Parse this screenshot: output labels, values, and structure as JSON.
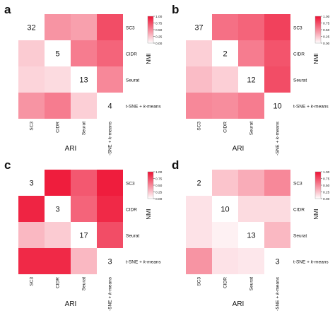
{
  "chart_data": [
    {
      "panel": "a",
      "type": "heatmap",
      "rows": [
        "SC3",
        "CIDR",
        "Seurat",
        "t-SNE + k-means"
      ],
      "columns": [
        "SC3",
        "CIDR",
        "Seurat",
        "t-SNE + k-means"
      ],
      "diagonal_labels": [
        "32",
        "5",
        "13",
        "4"
      ],
      "values": [
        [
          null,
          0.45,
          0.4,
          0.75
        ],
        [
          0.22,
          null,
          0.55,
          0.65
        ],
        [
          0.18,
          0.15,
          null,
          0.5
        ],
        [
          0.45,
          0.55,
          0.2,
          null
        ]
      ],
      "xlabel": "ARI",
      "colorbar": {
        "title": "NMI",
        "ticks": [
          "1.00",
          "0.75",
          "0.50",
          "0.25",
          "0.00"
        ],
        "range": [
          0,
          1
        ],
        "colors": [
          "#ffffff",
          "#ee1133"
        ]
      }
    },
    {
      "panel": "b",
      "type": "heatmap",
      "rows": [
        "SC3",
        "CIDR",
        "Seurat",
        "t-SNE + k-means"
      ],
      "columns": [
        "SC3",
        "CIDR",
        "Seurat",
        "t-SNE + k-means"
      ],
      "diagonal_labels": [
        "37",
        "2",
        "12",
        "10"
      ],
      "values": [
        [
          null,
          0.6,
          0.65,
          0.8
        ],
        [
          0.2,
          null,
          0.55,
          0.72
        ],
        [
          0.28,
          0.2,
          null,
          0.75
        ],
        [
          0.5,
          0.48,
          0.55,
          null
        ]
      ],
      "xlabel": "ARI",
      "colorbar": {
        "title": "NMI",
        "ticks": [
          "1.00",
          "0.75",
          "0.50",
          "0.25",
          "0.00"
        ],
        "range": [
          0,
          1
        ],
        "colors": [
          "#ffffff",
          "#ee1133"
        ]
      }
    },
    {
      "panel": "c",
      "type": "heatmap",
      "rows": [
        "SC3",
        "CIDR",
        "Seurat",
        "t-SNE + k-means"
      ],
      "columns": [
        "SC3",
        "CIDR",
        "Seurat",
        "t-SNE + k-means"
      ],
      "diagonal_labels": [
        "3",
        "3",
        "17",
        "3"
      ],
      "values": [
        [
          null,
          0.95,
          0.7,
          0.95
        ],
        [
          0.92,
          null,
          0.65,
          0.9
        ],
        [
          0.3,
          0.22,
          null,
          0.75
        ],
        [
          0.9,
          0.9,
          0.3,
          null
        ]
      ],
      "xlabel": "ARI",
      "colorbar": {
        "title": "NMI",
        "ticks": [
          "1.00",
          "0.75",
          "0.50",
          "0.25",
          "0.00"
        ],
        "range": [
          0,
          1
        ],
        "colors": [
          "#ffffff",
          "#ee1133"
        ]
      }
    },
    {
      "panel": "d",
      "type": "heatmap",
      "rows": [
        "SC3",
        "CIDR",
        "Seurat",
        "t-SNE + k-means"
      ],
      "columns": [
        "SC3",
        "CIDR",
        "Seurat",
        "t-SNE + k-means"
      ],
      "diagonal_labels": [
        "2",
        "10",
        "13",
        "3"
      ],
      "values": [
        [
          null,
          0.25,
          0.35,
          0.5
        ],
        [
          0.12,
          null,
          0.15,
          0.15
        ],
        [
          0.12,
          0.06,
          null,
          0.3
        ],
        [
          0.45,
          0.12,
          0.1,
          null
        ]
      ],
      "xlabel": "ARI",
      "colorbar": {
        "title": "NMI",
        "ticks": [
          "1.00",
          "0.75",
          "0.50",
          "0.25",
          "0.00"
        ],
        "range": [
          0,
          1
        ],
        "colors": [
          "#ffffff",
          "#ee1133"
        ]
      }
    }
  ]
}
